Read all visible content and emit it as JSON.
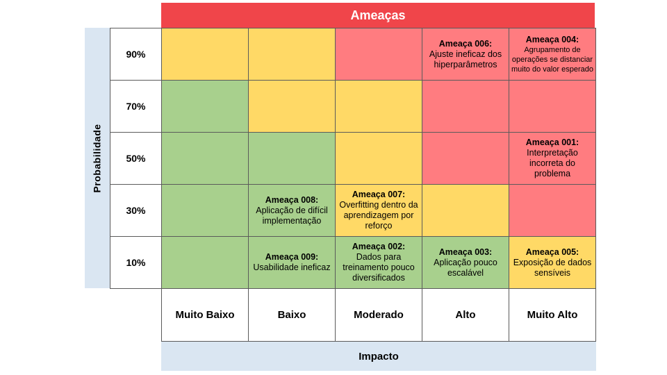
{
  "header": {
    "title": "Ameaças"
  },
  "axes": {
    "y_label": "Probabilidade",
    "x_label": "Impacto"
  },
  "rows": [
    "90%",
    "70%",
    "50%",
    "30%",
    "10%"
  ],
  "columns": [
    "Muito Baixo",
    "Baixo",
    "Moderado",
    "Alto",
    "Muito Alto"
  ],
  "colors": {
    "green": "#a8d08d",
    "yellow": "#ffd966",
    "red": "#ff7c80",
    "header": "#f0454a",
    "band": "#dae6f2"
  },
  "matrix": [
    [
      "yellow",
      "yellow",
      "red",
      "red",
      "red"
    ],
    [
      "green",
      "yellow",
      "yellow",
      "red",
      "red"
    ],
    [
      "green",
      "green",
      "yellow",
      "red",
      "red"
    ],
    [
      "green",
      "green",
      "yellow",
      "yellow",
      "red"
    ],
    [
      "green",
      "green",
      "green",
      "green",
      "yellow"
    ]
  ],
  "threats": [
    {
      "row": 0,
      "col": 3,
      "title": "Ameaça 006:",
      "text": "Ajuste ineficaz dos hiperparâmetros",
      "size": "normal"
    },
    {
      "row": 0,
      "col": 4,
      "title": "Ameaça 004:",
      "text": "Agrupamento de operações se distanciar muito do valor esperado",
      "size": "small"
    },
    {
      "row": 2,
      "col": 4,
      "title": "Ameaça 001:",
      "text": "Interpretação incorreta do problema",
      "size": "normal"
    },
    {
      "row": 3,
      "col": 1,
      "title": "Ameaça 008:",
      "text": "Aplicação de difícil implementação",
      "size": "normal"
    },
    {
      "row": 3,
      "col": 2,
      "title": "Ameaça 007:",
      "text": "Overfitting dentro da aprendizagem por reforço",
      "size": "normal"
    },
    {
      "row": 4,
      "col": 1,
      "title": "Ameaça 009:",
      "text": "Usabilidade ineficaz",
      "size": "normal"
    },
    {
      "row": 4,
      "col": 2,
      "title": "Ameaça 002:",
      "text": "Dados para treinamento pouco diversificados",
      "size": "normal"
    },
    {
      "row": 4,
      "col": 3,
      "title": "Ameaça 003:",
      "text": "Aplicação pouco escalável",
      "size": "normal"
    },
    {
      "row": 4,
      "col": 4,
      "title": "Ameaça 005:",
      "text": "Exposição de dados sensíveis",
      "size": "normal"
    }
  ]
}
